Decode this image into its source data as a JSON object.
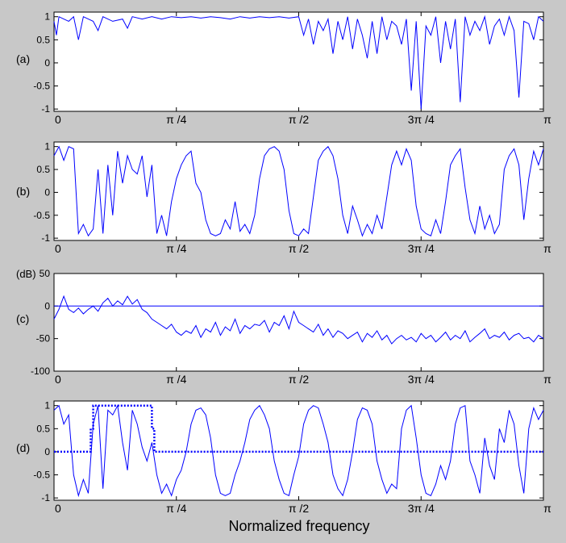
{
  "figure": {
    "background": "#c8c8c8",
    "line_color": "#0000ff",
    "xlabel": "Normalized frequency"
  },
  "chart_data": [
    {
      "type": "line",
      "panel_label": "(a)",
      "unit_label": "",
      "xlim": [
        0,
        1
      ],
      "ylim": [
        -1.05,
        1.1
      ],
      "yticks": [
        1,
        0.5,
        0,
        -0.5,
        -1
      ],
      "ytick_labels": [
        "1",
        "0.5",
        "0",
        "-0.5",
        "-1"
      ],
      "xticks": [
        0,
        0.25,
        0.5,
        0.75,
        1
      ],
      "xtick_labels": [
        "0",
        "π /4",
        "π /2",
        "3π /4",
        "π"
      ],
      "series": [
        {
          "x": [
            0,
            0.005,
            0.01,
            0.02,
            0.03,
            0.04,
            0.05,
            0.06,
            0.07,
            0.08,
            0.09,
            0.1,
            0.12,
            0.14,
            0.15,
            0.16,
            0.18,
            0.2,
            0.22,
            0.24,
            0.26,
            0.28,
            0.3,
            0.32,
            0.34,
            0.36,
            0.38,
            0.4,
            0.42,
            0.44,
            0.46,
            0.48,
            0.5,
            0.51,
            0.52,
            0.53,
            0.54,
            0.55,
            0.56,
            0.57,
            0.58,
            0.59,
            0.6,
            0.61,
            0.62,
            0.63,
            0.64,
            0.65,
            0.66,
            0.67,
            0.68,
            0.69,
            0.7,
            0.71,
            0.72,
            0.73,
            0.74,
            0.75,
            0.76,
            0.77,
            0.78,
            0.79,
            0.8,
            0.81,
            0.82,
            0.83,
            0.84,
            0.85,
            0.86,
            0.87,
            0.88,
            0.89,
            0.9,
            0.91,
            0.92,
            0.93,
            0.94,
            0.95,
            0.96,
            0.97,
            0.98,
            0.99,
            1
          ],
          "y": [
            0.9,
            0.6,
            1.0,
            0.95,
            0.9,
            1.0,
            0.5,
            1.0,
            0.95,
            0.9,
            0.7,
            1.0,
            0.9,
            0.95,
            0.75,
            1.0,
            0.95,
            1.0,
            0.95,
            1.0,
            0.98,
            1.0,
            0.97,
            1.0,
            0.98,
            0.95,
            1.0,
            0.97,
            1.0,
            0.98,
            1.0,
            0.97,
            1.0,
            0.6,
            0.95,
            0.4,
            0.9,
            0.7,
            0.95,
            0.2,
            0.9,
            0.5,
            1.0,
            0.3,
            0.95,
            0.6,
            0.1,
            0.9,
            0.2,
            1.0,
            0.5,
            0.9,
            0.8,
            0.4,
            0.95,
            -0.6,
            0.9,
            -1.0,
            0.8,
            0.6,
            1.0,
            0.0,
            0.9,
            0.3,
            0.95,
            -0.85,
            1.0,
            0.6,
            0.9,
            0.7,
            1.0,
            0.4,
            0.8,
            0.95,
            0.6,
            1.0,
            0.7,
            -0.75,
            0.9,
            0.85,
            0.5,
            1.0,
            0.9
          ]
        }
      ]
    },
    {
      "type": "line",
      "panel_label": "(b)",
      "unit_label": "",
      "xlim": [
        0,
        1
      ],
      "ylim": [
        -1.05,
        1.1
      ],
      "yticks": [
        1,
        0.5,
        0,
        -0.5,
        -1
      ],
      "ytick_labels": [
        "1",
        "0.5",
        "0",
        "-0.5",
        "-1"
      ],
      "xticks": [
        0,
        0.25,
        0.5,
        0.75,
        1
      ],
      "xtick_labels": [
        "0",
        "π /4",
        "π /2",
        "3π /4",
        "π"
      ],
      "series": [
        {
          "x": [
            0,
            0.01,
            0.02,
            0.03,
            0.04,
            0.05,
            0.06,
            0.07,
            0.08,
            0.09,
            0.1,
            0.11,
            0.12,
            0.13,
            0.14,
            0.15,
            0.16,
            0.17,
            0.18,
            0.19,
            0.2,
            0.21,
            0.22,
            0.23,
            0.24,
            0.25,
            0.26,
            0.27,
            0.28,
            0.29,
            0.3,
            0.31,
            0.32,
            0.33,
            0.34,
            0.35,
            0.36,
            0.37,
            0.38,
            0.39,
            0.4,
            0.41,
            0.42,
            0.43,
            0.44,
            0.45,
            0.46,
            0.47,
            0.48,
            0.49,
            0.5,
            0.51,
            0.52,
            0.53,
            0.54,
            0.55,
            0.56,
            0.57,
            0.58,
            0.59,
            0.6,
            0.61,
            0.62,
            0.63,
            0.64,
            0.65,
            0.66,
            0.67,
            0.68,
            0.69,
            0.7,
            0.71,
            0.72,
            0.73,
            0.74,
            0.75,
            0.76,
            0.77,
            0.78,
            0.79,
            0.8,
            0.81,
            0.82,
            0.83,
            0.84,
            0.85,
            0.86,
            0.87,
            0.88,
            0.89,
            0.9,
            0.91,
            0.92,
            0.93,
            0.94,
            0.95,
            0.96,
            0.97,
            0.98,
            0.99,
            1
          ],
          "y": [
            0.8,
            1.0,
            0.7,
            1.0,
            0.95,
            -0.9,
            -0.7,
            -0.95,
            -0.8,
            0.5,
            -0.9,
            0.6,
            -0.5,
            0.9,
            0.2,
            0.8,
            0.5,
            0.4,
            0.8,
            -0.1,
            0.6,
            -0.9,
            -0.5,
            -0.95,
            -0.2,
            0.3,
            0.6,
            0.8,
            0.9,
            0.2,
            0.0,
            -0.6,
            -0.9,
            -0.95,
            -0.9,
            -0.6,
            -0.8,
            -0.2,
            -0.85,
            -0.7,
            -0.9,
            -0.5,
            0.3,
            0.8,
            0.95,
            1.0,
            0.9,
            0.5,
            -0.4,
            -0.9,
            -0.95,
            -0.8,
            -0.9,
            -0.1,
            0.7,
            0.9,
            1.0,
            0.8,
            0.3,
            -0.5,
            -0.9,
            -0.3,
            -0.6,
            -0.95,
            -0.7,
            -0.9,
            -0.5,
            -0.8,
            -0.1,
            0.6,
            0.9,
            0.6,
            0.95,
            0.7,
            -0.3,
            -0.8,
            -0.9,
            -0.95,
            -0.6,
            -0.9,
            -0.2,
            0.6,
            0.8,
            0.95,
            0.1,
            -0.6,
            -0.9,
            -0.3,
            -0.8,
            -0.5,
            -0.9,
            -0.7,
            0.5,
            0.8,
            0.95,
            0.6,
            -0.6,
            0.3,
            0.9,
            0.6,
            0.95
          ]
        }
      ]
    },
    {
      "type": "line",
      "panel_label": "(c)",
      "unit_label": "(dB)",
      "xlim": [
        0,
        1
      ],
      "ylim": [
        -100,
        50
      ],
      "yticks": [
        50,
        0,
        -50,
        -100
      ],
      "ytick_labels": [
        "50",
        "0",
        "-50",
        "-100"
      ],
      "xticks": [
        0,
        0.25,
        0.5,
        0.75,
        1
      ],
      "xtick_labels": [
        "0",
        "π /4",
        "π /2",
        "3π /4",
        "π"
      ],
      "series": [
        {
          "x": [
            0,
            0.01,
            0.02,
            0.03,
            0.04,
            0.05,
            0.06,
            0.07,
            0.08,
            0.09,
            0.1,
            0.11,
            0.12,
            0.13,
            0.14,
            0.15,
            0.16,
            0.17,
            0.18,
            0.19,
            0.2,
            0.21,
            0.22,
            0.23,
            0.24,
            0.25,
            0.26,
            0.27,
            0.28,
            0.29,
            0.3,
            0.31,
            0.32,
            0.33,
            0.34,
            0.35,
            0.36,
            0.37,
            0.38,
            0.39,
            0.4,
            0.41,
            0.42,
            0.43,
            0.44,
            0.45,
            0.46,
            0.47,
            0.48,
            0.49,
            0.5,
            0.51,
            0.52,
            0.53,
            0.54,
            0.55,
            0.56,
            0.57,
            0.58,
            0.59,
            0.6,
            0.61,
            0.62,
            0.63,
            0.64,
            0.65,
            0.66,
            0.67,
            0.68,
            0.69,
            0.7,
            0.71,
            0.72,
            0.73,
            0.74,
            0.75,
            0.76,
            0.77,
            0.78,
            0.79,
            0.8,
            0.81,
            0.82,
            0.83,
            0.84,
            0.85,
            0.86,
            0.87,
            0.88,
            0.89,
            0.9,
            0.91,
            0.92,
            0.93,
            0.94,
            0.95,
            0.96,
            0.97,
            0.98,
            0.99,
            1
          ],
          "y": [
            -20,
            -5,
            15,
            -5,
            -10,
            -3,
            -12,
            -5,
            0,
            -8,
            5,
            12,
            0,
            8,
            2,
            15,
            3,
            10,
            -5,
            -10,
            -20,
            -25,
            -30,
            -35,
            -28,
            -40,
            -45,
            -38,
            -42,
            -30,
            -48,
            -35,
            -40,
            -25,
            -45,
            -32,
            -38,
            -20,
            -42,
            -30,
            -35,
            -28,
            -30,
            -22,
            -40,
            -25,
            -30,
            -15,
            -35,
            -8,
            -25,
            -30,
            -35,
            -40,
            -28,
            -45,
            -35,
            -48,
            -38,
            -42,
            -50,
            -45,
            -40,
            -55,
            -42,
            -48,
            -38,
            -52,
            -45,
            -58,
            -50,
            -45,
            -52,
            -48,
            -55,
            -42,
            -50,
            -45,
            -55,
            -48,
            -40,
            -52,
            -45,
            -50,
            -38,
            -55,
            -48,
            -42,
            -35,
            -50,
            -45,
            -48,
            -40,
            -52,
            -45,
            -42,
            -50,
            -48,
            -55,
            -45,
            -50
          ]
        },
        {
          "x": [
            0,
            1
          ],
          "y": [
            0,
            0
          ]
        }
      ]
    },
    {
      "type": "line",
      "panel_label": "(d)",
      "unit_label": "",
      "xlim": [
        0,
        1
      ],
      "ylim": [
        -1.05,
        1.1
      ],
      "yticks": [
        1,
        0.5,
        0,
        -0.5,
        -1
      ],
      "ytick_labels": [
        "1",
        "0.5",
        "0",
        "-0.5",
        "-1"
      ],
      "xticks": [
        0,
        0.25,
        0.5,
        0.75,
        1
      ],
      "xtick_labels": [
        "0",
        "π /4",
        "π /2",
        "3π /4",
        "π"
      ],
      "series": [
        {
          "x": [
            0,
            0.01,
            0.02,
            0.03,
            0.04,
            0.05,
            0.06,
            0.07,
            0.08,
            0.09,
            0.1,
            0.11,
            0.12,
            0.13,
            0.14,
            0.15,
            0.16,
            0.17,
            0.18,
            0.19,
            0.2,
            0.21,
            0.22,
            0.23,
            0.24,
            0.25,
            0.26,
            0.27,
            0.28,
            0.29,
            0.3,
            0.31,
            0.32,
            0.33,
            0.34,
            0.35,
            0.36,
            0.37,
            0.38,
            0.39,
            0.4,
            0.41,
            0.42,
            0.43,
            0.44,
            0.45,
            0.46,
            0.47,
            0.48,
            0.49,
            0.5,
            0.51,
            0.52,
            0.53,
            0.54,
            0.55,
            0.56,
            0.57,
            0.58,
            0.59,
            0.6,
            0.61,
            0.62,
            0.63,
            0.64,
            0.65,
            0.66,
            0.67,
            0.68,
            0.69,
            0.7,
            0.71,
            0.72,
            0.73,
            0.74,
            0.75,
            0.76,
            0.77,
            0.78,
            0.79,
            0.8,
            0.81,
            0.82,
            0.83,
            0.84,
            0.85,
            0.86,
            0.87,
            0.88,
            0.89,
            0.9,
            0.91,
            0.92,
            0.93,
            0.94,
            0.95,
            0.96,
            0.97,
            0.98,
            0.99,
            1
          ],
          "y": [
            0.9,
            1.0,
            0.6,
            0.8,
            -0.5,
            -0.95,
            -0.6,
            -0.9,
            0.6,
            1.0,
            -0.8,
            0.9,
            0.8,
            1.0,
            0.2,
            -0.4,
            0.9,
            0.6,
            0.1,
            -0.2,
            0.2,
            -0.5,
            -0.9,
            -0.7,
            -0.95,
            -0.6,
            -0.4,
            0.0,
            0.6,
            0.9,
            0.95,
            0.8,
            0.3,
            -0.5,
            -0.9,
            -0.95,
            -0.9,
            -0.5,
            -0.2,
            0.2,
            0.7,
            0.9,
            1.0,
            0.8,
            0.5,
            -0.2,
            -0.6,
            -0.9,
            -0.95,
            -0.5,
            -0.1,
            0.6,
            0.9,
            1.0,
            0.95,
            0.6,
            0.2,
            -0.5,
            -0.8,
            -0.95,
            -0.6,
            0.0,
            0.7,
            0.95,
            0.9,
            0.6,
            -0.2,
            -0.6,
            -0.9,
            -0.7,
            -0.8,
            0.5,
            0.9,
            1.0,
            0.3,
            -0.5,
            -0.9,
            -0.95,
            -0.7,
            -0.3,
            -0.6,
            -0.2,
            0.6,
            0.95,
            1.0,
            -0.2,
            -0.5,
            -0.9,
            0.3,
            -0.3,
            -0.6,
            0.5,
            0.2,
            0.9,
            0.6,
            -0.3,
            -0.9,
            0.5,
            0.95,
            0.7,
            0.9
          ]
        },
        {
          "x": [
            0,
            0.075,
            0.075,
            0.08,
            0.08,
            0.2,
            0.2,
            0.205,
            0.205,
            1
          ],
          "y": [
            0,
            0,
            0.5,
            0.5,
            1,
            1,
            0.5,
            0.5,
            0,
            0
          ]
        }
      ]
    }
  ]
}
